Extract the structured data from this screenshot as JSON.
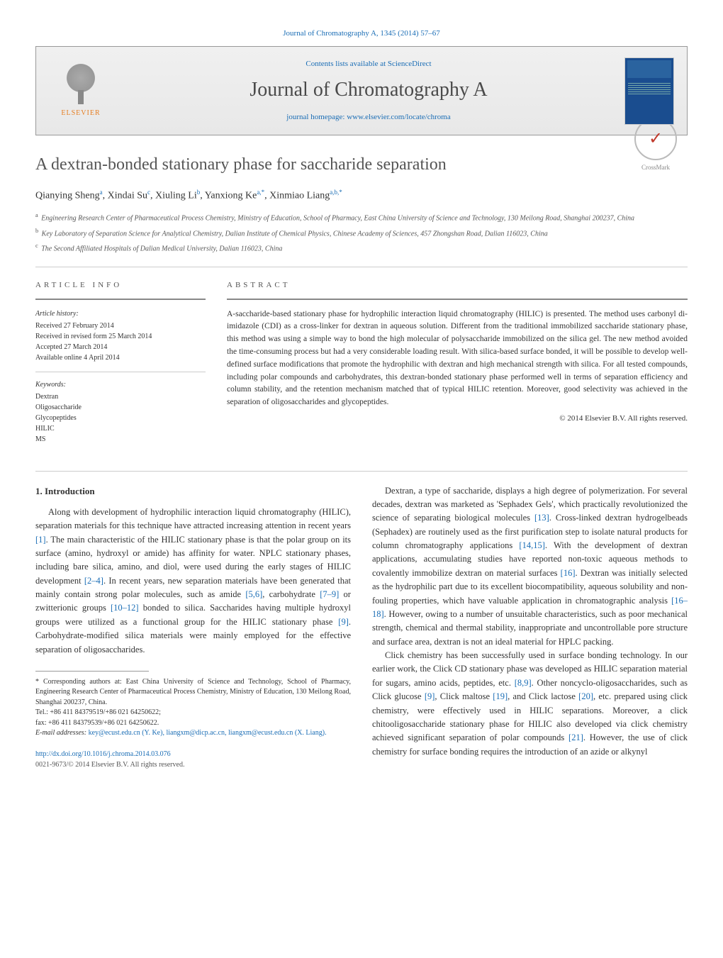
{
  "page": {
    "top_citation": "Journal of Chromatography A, 1345 (2014) 57–67",
    "contents_line_prefix": "Contents lists available at ",
    "contents_line_link": "ScienceDirect",
    "journal_name": "Journal of Chromatography A",
    "homepage_prefix": "journal homepage: ",
    "homepage_link": "www.elsevier.com/locate/chroma",
    "publisher_mark": "ELSEVIER",
    "crossmark": "CrossMark"
  },
  "article": {
    "title": "A dextran-bonded stationary phase for saccharide separation",
    "authors_html": "Qianying Sheng|a|, Xindai Su|c|, Xiuling Li|b|, Yanxiong Ke|a,*|, Xinmiao Liang|a,b,*|",
    "affiliations": [
      "a|Engineering Research Center of Pharmaceutical Process Chemistry, Ministry of Education, School of Pharmacy, East China University of Science and Technology, 130 Meilong Road, Shanghai 200237, China",
      "b|Key Laboratory of Separation Science for Analytical Chemistry, Dalian Institute of Chemical Physics, Chinese Academy of Sciences, 457 Zhongshan Road, Dalian 116023, China",
      "c|The Second Affiliated Hospitals of Dalian Medical University, Dalian 116023, China"
    ]
  },
  "info": {
    "label": "article info",
    "history_hdr": "Article history:",
    "history": [
      "Received 27 February 2014",
      "Received in revised form 25 March 2014",
      "Accepted 27 March 2014",
      "Available online 4 April 2014"
    ],
    "keywords_hdr": "Keywords:",
    "keywords": [
      "Dextran",
      "Oligosaccharide",
      "Glycopeptides",
      "HILIC",
      "MS"
    ]
  },
  "abstract": {
    "label": "abstract",
    "text": "A-saccharide-based stationary phase for hydrophilic interaction liquid chromatography (HILIC) is presented. The method uses carbonyl di-imidazole (CDI) as a cross-linker for dextran in aqueous solution. Different from the traditional immobilized saccharide stationary phase, this method was using a simple way to bond the high molecular of polysaccharide immobilized on the silica gel. The new method avoided the time-consuming process but had a very considerable loading result. With silica-based surface bonded, it will be possible to develop well-defined surface modifications that promote the hydrophilic with dextran and high mechanical strength with silica. For all tested compounds, including polar compounds and carbohydrates, this dextran-bonded stationary phase performed well in terms of separation efficiency and column stability, and the retention mechanism matched that of typical HILIC retention. Moreover, good selectivity was achieved in the separation of oligosaccharides and glycopeptides.",
    "copyright": "© 2014 Elsevier B.V. All rights reserved."
  },
  "body": {
    "intro_heading": "1. Introduction",
    "left_para": "Along with development of hydrophilic interaction liquid chromatography (HILIC), separation materials for this technique have attracted increasing attention in recent years [1]. The main characteristic of the HILIC stationary phase is that the polar group on its surface (amino, hydroxyl or amide) has affinity for water. NPLC stationary phases, including bare silica, amino, and diol, were used during the early stages of HILIC development [2–4]. In recent years, new separation materials have been generated that mainly contain strong polar molecules, such as amide [5,6], carbohydrate [7–9] or zwitterionic groups [10–12] bonded to silica. Saccharides having multiple hydroxyl groups were utilized as a functional group for the HILIC stationary phase [9]. Carbohydrate-modified silica materials were mainly employed for the effective separation of oligosaccharides.",
    "right_para1": "Dextran, a type of saccharide, displays a high degree of polymerization. For several decades, dextran was marketed as 'Sephadex Gels', which practically revolutionized the science of separating biological molecules [13]. Cross-linked dextran hydrogelbeads (Sephadex) are routinely used as the first purification step to isolate natural products for column chromatography applications [14,15]. With the development of dextran applications, accumulating studies have reported non-toxic aqueous methods to covalently immobilize dextran on material surfaces [16]. Dextran was initially selected as the hydrophilic part due to its excellent biocompatibility, aqueous solubility and non-fouling properties, which have valuable application in chromatographic analysis [16–18]. However, owing to a number of unsuitable characteristics, such as poor mechanical strength, chemical and thermal stability, inappropriate and uncontrollable pore structure and surface area, dextran is not an ideal material for HPLC packing.",
    "right_para2": "Click chemistry has been successfully used in surface bonding technology. In our earlier work, the Click CD stationary phase was developed as HILIC separation material for sugars, amino acids, peptides, etc. [8,9]. Other noncyclo-oligosaccharides, such as Click glucose [9], Click maltose [19], and Click lactose [20], etc. prepared using click chemistry, were effectively used in HILIC separations. Moreover, a click chitooligosaccharide stationary phase for HILIC also developed via click chemistry achieved significant separation of polar compounds [21]. However, the use of click chemistry for surface bonding requires the introduction of an azide or alkynyl"
  },
  "footnote": {
    "corr": "* Corresponding authors at: East China University of Science and Technology, School of Pharmacy, Engineering Research Center of Pharmaceutical Process Chemistry, Ministry of Education, 130 Meilong Road, Shanghai 200237, China.",
    "tel": "Tel.: +86 411 84379519/+86 021 64250622;",
    "fax": "fax: +86 411 84379539/+86 021 64250622.",
    "email_label": "E-mail addresses: ",
    "emails": "key@ecust.edu.cn (Y. Ke), liangxm@dicp.ac.cn, liangxm@ecust.edu.cn (X. Liang).",
    "doi": "http://dx.doi.org/10.1016/j.chroma.2014.03.076",
    "issn": "0021-9673/© 2014 Elsevier B.V. All rights reserved."
  },
  "colors": {
    "link": "#1a6db5",
    "heading_gray": "#555555",
    "rule": "#888888",
    "elsevier_orange": "#e67e22",
    "cover_bg": "#1a4d8f"
  }
}
